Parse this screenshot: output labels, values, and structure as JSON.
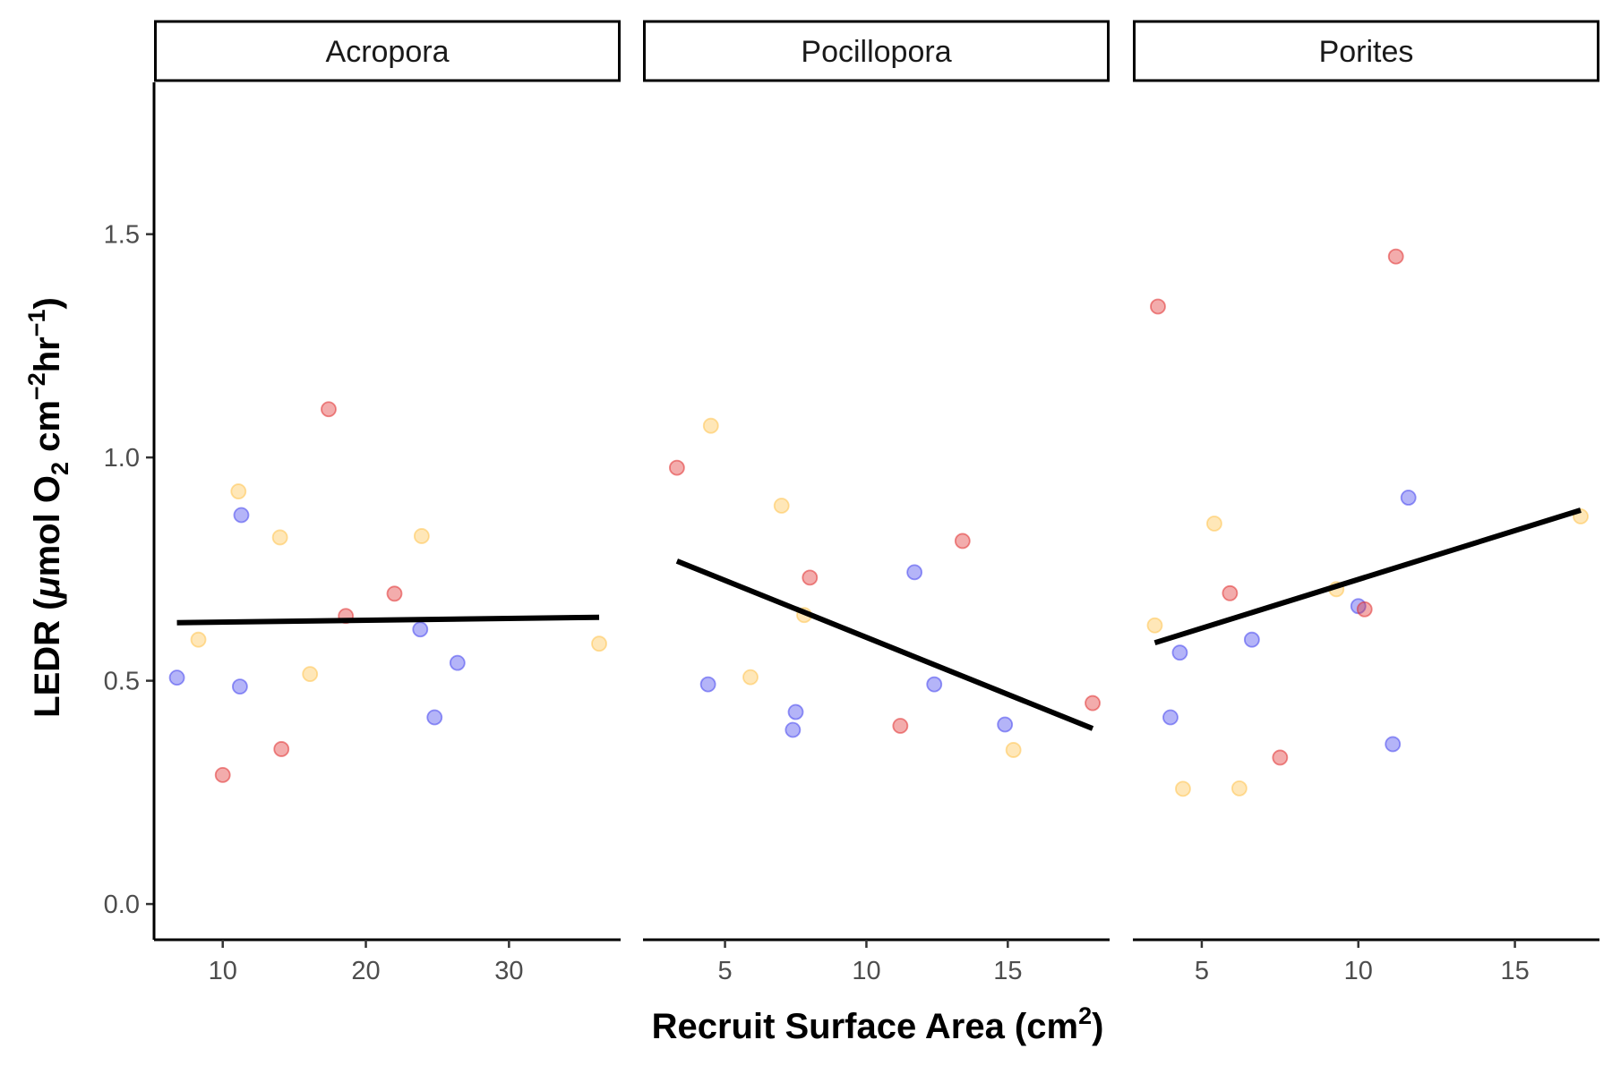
{
  "chart_data": {
    "type": "scatter",
    "ylabel": {
      "prefix": "LEDR (",
      "mu": "μ",
      "mid1": "mol O",
      "sub2": "2",
      "mid2": " cm",
      "sup1": "−2",
      "mid3": "hr",
      "sup2": "−1",
      "suffix": ")"
    },
    "xlabel": {
      "text": "Recruit Surface Area (cm",
      "sup": "2",
      "suffix": ")"
    },
    "ylim": [
      -0.08,
      1.84
    ],
    "yticks": [
      0.0,
      0.5,
      1.0,
      1.5
    ],
    "ytick_labels": [
      "0.0",
      "0.5",
      "1.0",
      "1.5"
    ],
    "grid": false,
    "color_key": {
      "red": "#e03030",
      "yellow": "#ffc34d",
      "blue": "#4444ee"
    },
    "facets": [
      {
        "name": "Acropora",
        "xlim": [
          5.2,
          37.8
        ],
        "xticks": [
          10,
          20,
          30
        ],
        "trend": [
          [
            6.8,
            0.63
          ],
          [
            36.3,
            0.642
          ]
        ],
        "points": [
          {
            "x": 6.8,
            "y": 0.507,
            "c": "blue"
          },
          {
            "x": 8.3,
            "y": 0.592,
            "c": "yellow"
          },
          {
            "x": 10.0,
            "y": 0.289,
            "c": "red"
          },
          {
            "x": 11.1,
            "y": 0.924,
            "c": "yellow"
          },
          {
            "x": 11.3,
            "y": 0.871,
            "c": "blue"
          },
          {
            "x": 11.2,
            "y": 0.487,
            "c": "blue"
          },
          {
            "x": 14.0,
            "y": 0.821,
            "c": "yellow"
          },
          {
            "x": 14.1,
            "y": 0.347,
            "c": "red"
          },
          {
            "x": 16.1,
            "y": 0.515,
            "c": "yellow"
          },
          {
            "x": 17.4,
            "y": 1.108,
            "c": "red"
          },
          {
            "x": 18.6,
            "y": 0.645,
            "c": "red"
          },
          {
            "x": 22.0,
            "y": 0.695,
            "c": "red"
          },
          {
            "x": 23.8,
            "y": 0.615,
            "c": "blue"
          },
          {
            "x": 23.9,
            "y": 0.824,
            "c": "yellow"
          },
          {
            "x": 24.8,
            "y": 0.418,
            "c": "blue"
          },
          {
            "x": 26.4,
            "y": 0.54,
            "c": "blue"
          },
          {
            "x": 36.3,
            "y": 0.583,
            "c": "yellow"
          }
        ]
      },
      {
        "name": "Pocillopora",
        "xlim": [
          2.1,
          18.6
        ],
        "xticks": [
          5,
          10,
          15
        ],
        "trend": [
          [
            3.3,
            0.768
          ],
          [
            18.0,
            0.393
          ]
        ],
        "points": [
          {
            "x": 3.3,
            "y": 0.977,
            "c": "red"
          },
          {
            "x": 4.5,
            "y": 1.071,
            "c": "yellow"
          },
          {
            "x": 4.4,
            "y": 0.492,
            "c": "blue"
          },
          {
            "x": 5.9,
            "y": 0.508,
            "c": "yellow"
          },
          {
            "x": 7.0,
            "y": 0.892,
            "c": "yellow"
          },
          {
            "x": 7.4,
            "y": 0.39,
            "c": "blue"
          },
          {
            "x": 7.5,
            "y": 0.43,
            "c": "blue"
          },
          {
            "x": 7.8,
            "y": 0.647,
            "c": "yellow"
          },
          {
            "x": 8.0,
            "y": 0.731,
            "c": "red"
          },
          {
            "x": 11.2,
            "y": 0.399,
            "c": "red"
          },
          {
            "x": 11.7,
            "y": 0.743,
            "c": "blue"
          },
          {
            "x": 12.4,
            "y": 0.492,
            "c": "blue"
          },
          {
            "x": 13.4,
            "y": 0.813,
            "c": "red"
          },
          {
            "x": 14.9,
            "y": 0.402,
            "c": "blue"
          },
          {
            "x": 15.2,
            "y": 0.345,
            "c": "yellow"
          },
          {
            "x": 18.0,
            "y": 0.45,
            "c": "red"
          }
        ]
      },
      {
        "name": "Porites",
        "xlim": [
          2.8,
          17.7
        ],
        "xticks": [
          5,
          10,
          15
        ],
        "trend": [
          [
            3.5,
            0.585
          ],
          [
            17.1,
            0.882
          ]
        ],
        "points": [
          {
            "x": 3.6,
            "y": 1.338,
            "c": "red"
          },
          {
            "x": 3.5,
            "y": 0.624,
            "c": "yellow"
          },
          {
            "x": 4.0,
            "y": 0.418,
            "c": "blue"
          },
          {
            "x": 4.3,
            "y": 0.563,
            "c": "blue"
          },
          {
            "x": 4.4,
            "y": 0.258,
            "c": "yellow"
          },
          {
            "x": 5.4,
            "y": 0.852,
            "c": "yellow"
          },
          {
            "x": 5.9,
            "y": 0.696,
            "c": "red"
          },
          {
            "x": 6.2,
            "y": 0.259,
            "c": "yellow"
          },
          {
            "x": 6.6,
            "y": 0.592,
            "c": "blue"
          },
          {
            "x": 7.5,
            "y": 0.328,
            "c": "red"
          },
          {
            "x": 9.3,
            "y": 0.705,
            "c": "yellow"
          },
          {
            "x": 10.0,
            "y": 0.667,
            "c": "blue"
          },
          {
            "x": 10.2,
            "y": 0.66,
            "c": "red"
          },
          {
            "x": 11.1,
            "y": 0.358,
            "c": "blue"
          },
          {
            "x": 11.2,
            "y": 1.45,
            "c": "red"
          },
          {
            "x": 11.6,
            "y": 0.91,
            "c": "blue"
          },
          {
            "x": 17.1,
            "y": 0.868,
            "c": "yellow"
          }
        ]
      }
    ]
  }
}
